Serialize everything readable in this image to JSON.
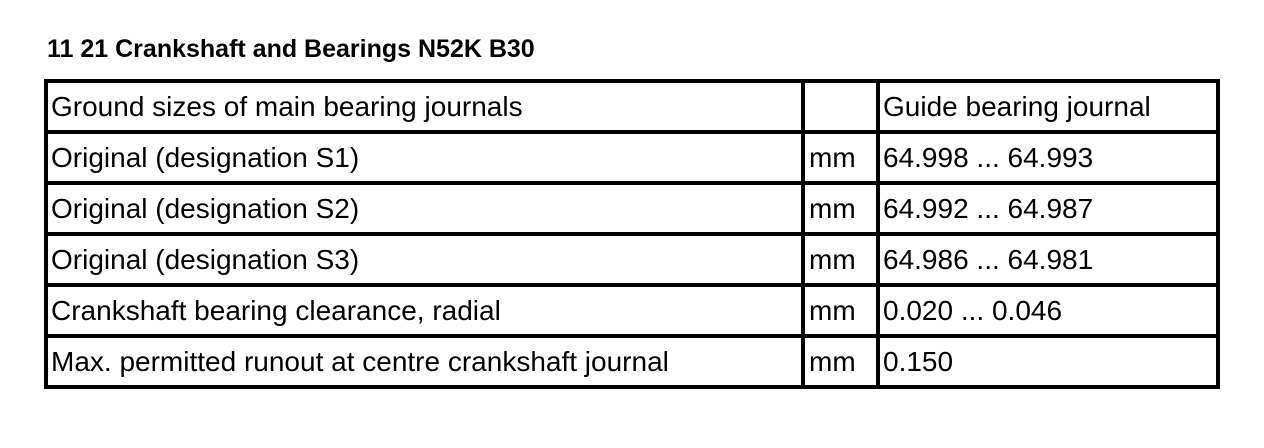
{
  "title": "11 21 Crankshaft and Bearings N52K B30",
  "table": {
    "header": [
      "Ground sizes of main bearing journals",
      "",
      "Guide bearing journal"
    ],
    "rows": [
      [
        "Original (designation S1)",
        "mm",
        "64.998 ... 64.993"
      ],
      [
        "Original (designation S2)",
        "mm",
        "64.992 ... 64.987"
      ],
      [
        "Original (designation S3)",
        "mm",
        "64.986 ... 64.981"
      ],
      [
        "Crankshaft bearing clearance, radial",
        "mm",
        "0.020 ... 0.046"
      ],
      [
        "Max. permitted runout at centre crankshaft journal",
        "mm",
        "0.150"
      ]
    ]
  }
}
